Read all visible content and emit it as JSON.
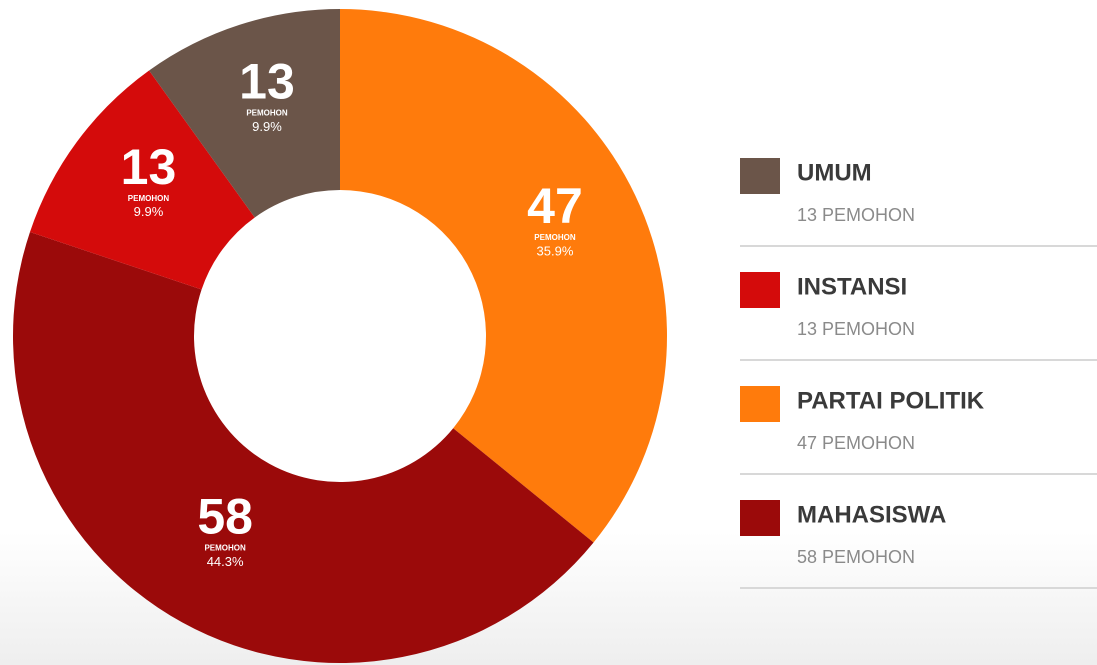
{
  "chart_data": {
    "type": "donut",
    "categories": [
      "UMUM",
      "INSTANSI",
      "PARTAI POLITIK",
      "MAHASISWA"
    ],
    "values": [
      13,
      13,
      47,
      58
    ],
    "percent_labels": [
      "9.9%",
      "9.9%",
      "35.9%",
      "44.3%"
    ],
    "unit": "PEMOHON",
    "legend_labels": [
      "13 PEMOHON",
      "13 PEMOHON",
      "47 PEMOHON",
      "58 PEMOHON"
    ],
    "colors": [
      "#6b5549",
      "#d40b0b",
      "#ff7b0c",
      "#9b0a0a"
    ],
    "legend": "right"
  }
}
